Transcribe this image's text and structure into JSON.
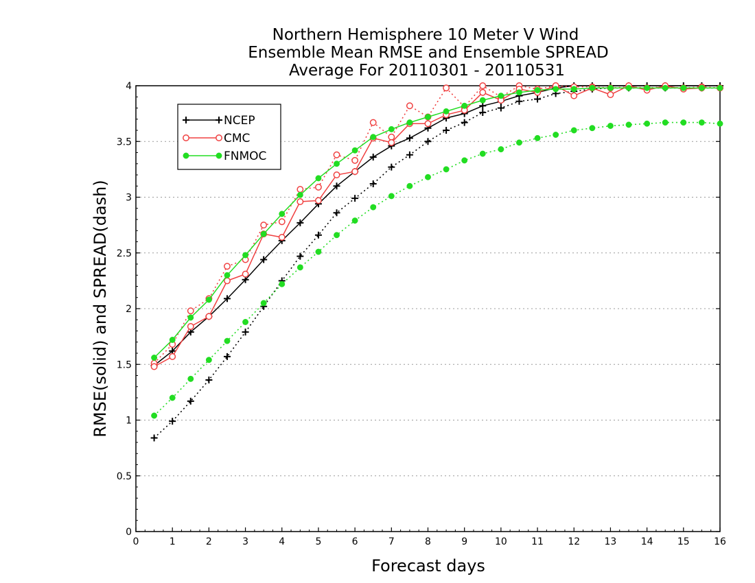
{
  "chart_data": {
    "type": "line",
    "title_lines": [
      "Northern Hemisphere 10 Meter V Wind",
      "Ensemble Mean RMSE and Ensemble SPREAD",
      "Average For 20110301 - 20110531"
    ],
    "xlabel": "Forecast days",
    "ylabel": "RMSE(solid) and SPREAD(dash)",
    "xlim": [
      0,
      16
    ],
    "ylim": [
      0,
      4
    ],
    "x_ticks": [
      "0",
      "1",
      "2",
      "3",
      "4",
      "5",
      "6",
      "7",
      "8",
      "9",
      "10",
      "11",
      "12",
      "13",
      "14",
      "15",
      "16"
    ],
    "y_ticks": [
      "0",
      "0.5",
      "1",
      "1.5",
      "2",
      "2.5",
      "3",
      "3.5",
      "4"
    ],
    "grid": true,
    "legend_position": "top-left",
    "x": [
      0.5,
      1,
      1.5,
      2,
      2.5,
      3,
      3.5,
      4,
      4.5,
      5,
      5.5,
      6,
      6.5,
      7,
      7.5,
      8,
      8.5,
      9,
      9.5,
      10,
      10.5,
      11,
      11.5,
      12,
      12.5,
      13,
      13.5,
      14,
      14.5,
      15,
      15.5,
      16
    ],
    "series": [
      {
        "name": "NCEP",
        "color": "#000000",
        "marker": "plus",
        "rmse": [
          1.49,
          1.62,
          1.79,
          1.93,
          2.09,
          2.26,
          2.44,
          2.61,
          2.77,
          2.94,
          3.1,
          3.23,
          3.36,
          3.46,
          3.53,
          3.62,
          3.71,
          3.75,
          3.82,
          3.86,
          3.91,
          3.94,
          3.98,
          4.0,
          4.0,
          4.0,
          4.0,
          4.0,
          4.0,
          4.0,
          4.0,
          4.0
        ],
        "spread": [
          0.84,
          0.99,
          1.17,
          1.36,
          1.57,
          1.79,
          2.02,
          2.25,
          2.47,
          2.66,
          2.86,
          2.99,
          3.12,
          3.27,
          3.38,
          3.5,
          3.6,
          3.67,
          3.76,
          3.8,
          3.86,
          3.88,
          3.93,
          3.95,
          3.97,
          3.98,
          3.98,
          3.98,
          3.98,
          3.98,
          3.98,
          3.98
        ]
      },
      {
        "name": "CMC",
        "color": "#f04040",
        "marker": "circle-open",
        "rmse": [
          1.48,
          1.57,
          1.84,
          1.93,
          2.25,
          2.31,
          2.67,
          2.64,
          2.96,
          2.97,
          3.2,
          3.23,
          3.53,
          3.49,
          3.66,
          3.66,
          3.74,
          3.78,
          3.94,
          3.87,
          3.97,
          3.94,
          4.0,
          3.91,
          3.98,
          3.92,
          4.0,
          3.96,
          4.0,
          3.97,
          3.98,
          3.98
        ],
        "spread": [
          1.51,
          1.68,
          1.98,
          2.09,
          2.38,
          2.44,
          2.75,
          2.78,
          3.07,
          3.09,
          3.38,
          3.33,
          3.67,
          3.54,
          3.82,
          3.72,
          3.98,
          3.81,
          4.0,
          3.9,
          4.0,
          3.97,
          4.0,
          3.99,
          3.99,
          3.98,
          3.99,
          3.98,
          3.99,
          3.98,
          3.99,
          3.98
        ]
      },
      {
        "name": "FNMOC",
        "color": "#22dd22",
        "marker": "dot",
        "rmse": [
          1.56,
          1.72,
          1.92,
          2.08,
          2.3,
          2.48,
          2.67,
          2.85,
          3.02,
          3.17,
          3.3,
          3.42,
          3.54,
          3.61,
          3.67,
          3.72,
          3.77,
          3.82,
          3.87,
          3.91,
          3.94,
          3.96,
          3.97,
          3.97,
          3.98,
          3.98,
          3.98,
          3.98,
          3.98,
          3.98,
          3.98,
          3.98
        ],
        "spread": [
          1.04,
          1.2,
          1.37,
          1.54,
          1.71,
          1.88,
          2.05,
          2.22,
          2.37,
          2.51,
          2.66,
          2.79,
          2.91,
          3.01,
          3.1,
          3.18,
          3.25,
          3.33,
          3.39,
          3.43,
          3.49,
          3.53,
          3.56,
          3.6,
          3.62,
          3.64,
          3.65,
          3.66,
          3.67,
          3.67,
          3.67,
          3.66
        ]
      }
    ]
  }
}
